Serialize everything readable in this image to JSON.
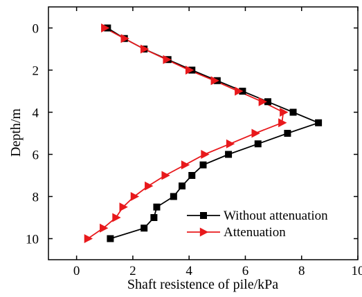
{
  "chart_data": {
    "type": "line",
    "xlabel": "Shaft resistence of pile/kPa",
    "ylabel": "Depth/m",
    "xlim": [
      -1,
      10
    ],
    "ylim": [
      11,
      -1
    ],
    "y_inverted": true,
    "xticks": [
      0,
      2,
      4,
      6,
      8,
      10
    ],
    "yticks": [
      0,
      2,
      4,
      6,
      8,
      10
    ],
    "grid": false,
    "legend_position": "bottom-right",
    "series": [
      {
        "name": "Without attenuation",
        "color": "#000000",
        "marker": "square",
        "points": [
          [
            1.1,
            0
          ],
          [
            1.7,
            0.5
          ],
          [
            2.4,
            1
          ],
          [
            3.25,
            1.5
          ],
          [
            4.1,
            2
          ],
          [
            5.0,
            2.5
          ],
          [
            5.9,
            3
          ],
          [
            6.8,
            3.5
          ],
          [
            7.7,
            4
          ],
          [
            8.6,
            4.5
          ],
          [
            7.5,
            5
          ],
          [
            6.45,
            5.5
          ],
          [
            5.4,
            6
          ],
          [
            4.5,
            6.5
          ],
          [
            4.1,
            7
          ],
          [
            3.75,
            7.5
          ],
          [
            3.45,
            8
          ],
          [
            2.85,
            8.5
          ],
          [
            2.75,
            9
          ],
          [
            2.4,
            9.5
          ],
          [
            1.2,
            10
          ]
        ]
      },
      {
        "name": "Attenuation",
        "color": "#e8191c",
        "marker": "triangle-right",
        "points": [
          [
            1.0,
            0
          ],
          [
            1.7,
            0.5
          ],
          [
            2.4,
            1
          ],
          [
            3.2,
            1.5
          ],
          [
            4.0,
            2
          ],
          [
            4.9,
            2.5
          ],
          [
            5.75,
            3
          ],
          [
            6.6,
            3.5
          ],
          [
            7.35,
            4
          ],
          [
            7.3,
            4.5
          ],
          [
            6.35,
            5
          ],
          [
            5.45,
            5.5
          ],
          [
            4.55,
            6
          ],
          [
            3.85,
            6.5
          ],
          [
            3.15,
            7
          ],
          [
            2.55,
            7.5
          ],
          [
            2.05,
            8
          ],
          [
            1.65,
            8.5
          ],
          [
            1.4,
            9
          ],
          [
            0.95,
            9.5
          ],
          [
            0.4,
            10
          ]
        ]
      }
    ]
  }
}
